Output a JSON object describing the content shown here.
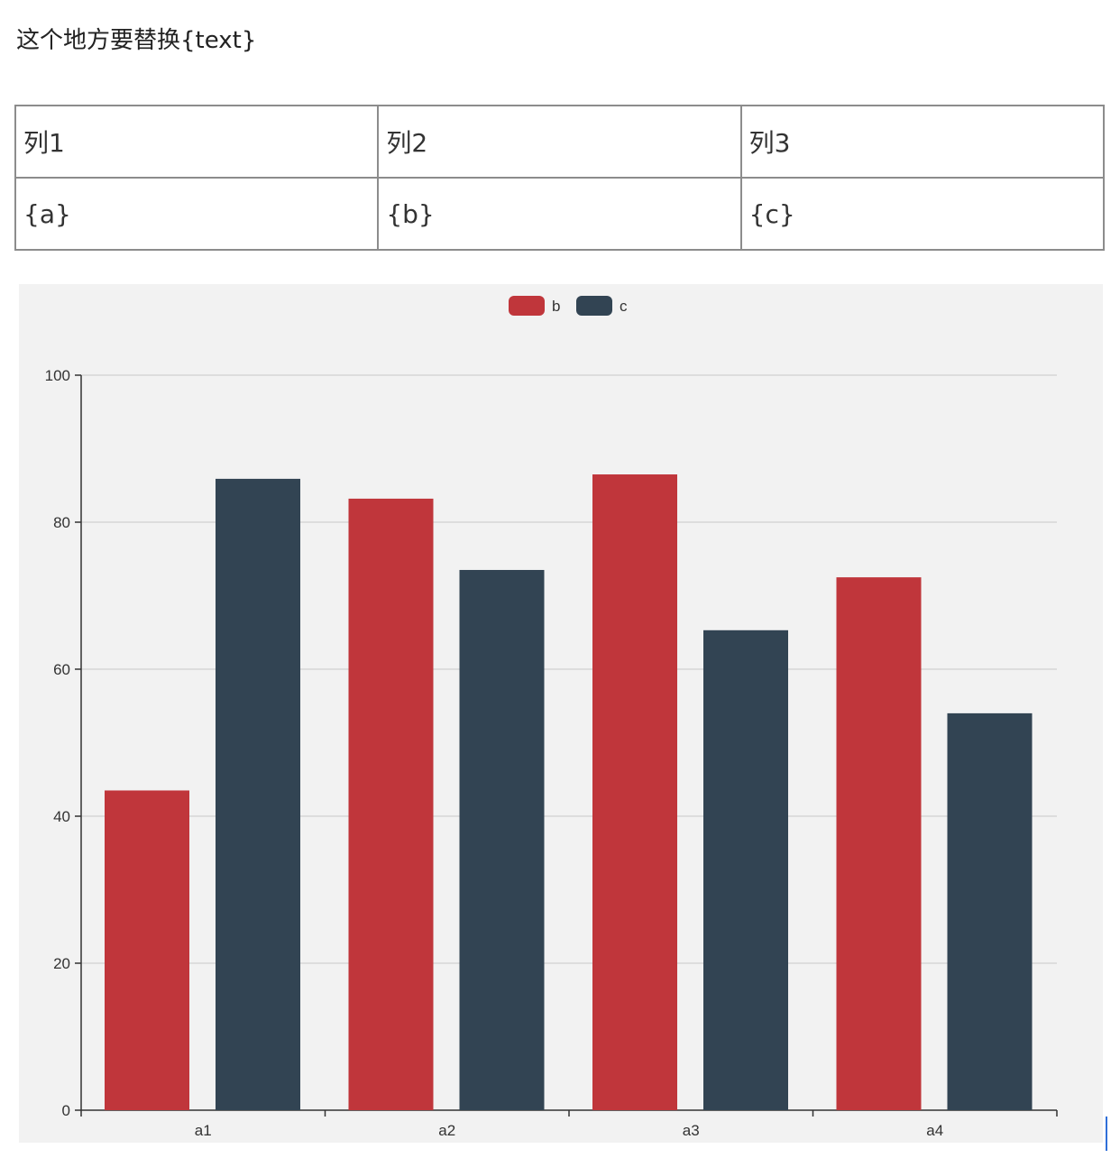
{
  "intro_text": "这个地方要替换{text}",
  "table": {
    "rows": [
      [
        "列1",
        "列2",
        "列3"
      ],
      [
        "{a}",
        "{b}",
        "{c}"
      ]
    ]
  },
  "chart_data": {
    "type": "bar",
    "categories": [
      "a1",
      "a2",
      "a3",
      "a4"
    ],
    "series": [
      {
        "name": "b",
        "color": "#c0363b",
        "values": [
          43.5,
          83.2,
          86.5,
          72.5
        ]
      },
      {
        "name": "c",
        "color": "#324453",
        "values": [
          85.9,
          73.5,
          65.3,
          54.0
        ]
      }
    ],
    "yticks": [
      0,
      20,
      40,
      60,
      80,
      100
    ],
    "ylim": [
      0,
      100
    ],
    "grid": true,
    "legend_position": "top-center",
    "background": "#f2f2f2"
  }
}
